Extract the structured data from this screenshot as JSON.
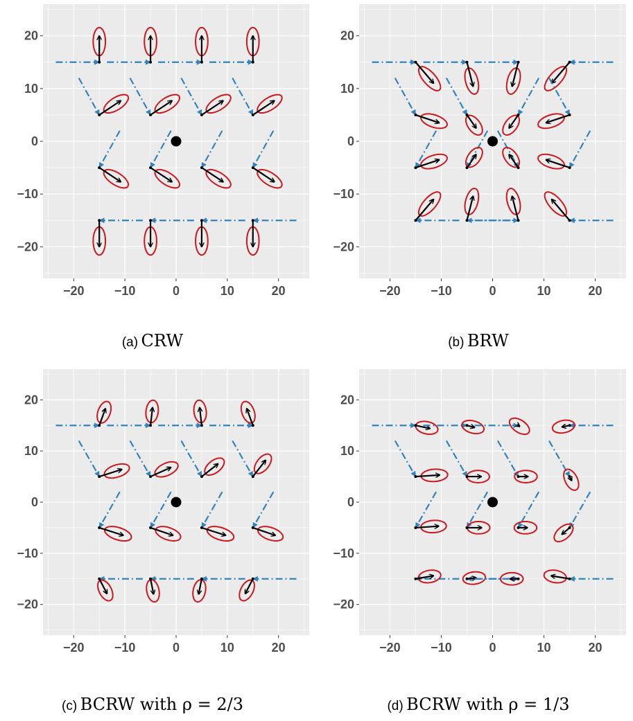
{
  "colors": {
    "panel_bg": "#ebebeb",
    "grid": "#ffffff",
    "move_arrow": "#3182bd",
    "step_arrow": "#000000",
    "ellipse": "#cb181d",
    "target": "#000000",
    "tick_text": "#4d4d4d"
  },
  "chart_data": [
    {
      "type": "scatter",
      "panel": "a",
      "caption_letter": "(a)",
      "caption_text": "CRW",
      "xlim": [
        -26,
        26
      ],
      "ylim": [
        -26,
        26
      ],
      "x_ticks": [
        -20,
        -10,
        0,
        10,
        20
      ],
      "y_ticks": [
        20,
        10,
        0,
        -10,
        -20
      ],
      "target": [
        0,
        0
      ],
      "arrows": [
        {
          "start": [
            -15,
            15
          ],
          "prev": [
            -23.5,
            15
          ],
          "dir": [
            0,
            5
          ]
        },
        {
          "start": [
            -5,
            15
          ],
          "prev": [
            -13.5,
            15
          ],
          "dir": [
            0,
            5
          ]
        },
        {
          "start": [
            5,
            15
          ],
          "prev": [
            -3.5,
            15
          ],
          "dir": [
            0,
            5
          ]
        },
        {
          "start": [
            15,
            15
          ],
          "prev": [
            6.5,
            15
          ],
          "dir": [
            0,
            5
          ]
        },
        {
          "start": [
            -15,
            5
          ],
          "prev": [
            -19,
            12
          ],
          "dir": [
            4.2,
            2.7
          ]
        },
        {
          "start": [
            -5,
            5
          ],
          "prev": [
            -9,
            12
          ],
          "dir": [
            4.2,
            2.7
          ]
        },
        {
          "start": [
            5,
            5
          ],
          "prev": [
            1,
            12
          ],
          "dir": [
            4.2,
            2.7
          ]
        },
        {
          "start": [
            15,
            5
          ],
          "prev": [
            11,
            12
          ],
          "dir": [
            4.2,
            2.7
          ]
        },
        {
          "start": [
            -15,
            -5
          ],
          "prev": [
            -11,
            2
          ],
          "dir": [
            4.2,
            -2.7
          ]
        },
        {
          "start": [
            -5,
            -5
          ],
          "prev": [
            -1,
            2
          ],
          "dir": [
            4.2,
            -2.7
          ]
        },
        {
          "start": [
            5,
            -5
          ],
          "prev": [
            9,
            2
          ],
          "dir": [
            4.2,
            -2.7
          ]
        },
        {
          "start": [
            15,
            -5
          ],
          "prev": [
            19,
            2
          ],
          "dir": [
            4.2,
            -2.7
          ]
        },
        {
          "start": [
            -15,
            -15
          ],
          "prev": [
            -6.5,
            -15
          ],
          "dir": [
            0,
            -5
          ]
        },
        {
          "start": [
            -5,
            -15
          ],
          "prev": [
            3.5,
            -15
          ],
          "dir": [
            0,
            -5
          ]
        },
        {
          "start": [
            5,
            -15
          ],
          "prev": [
            13.5,
            -15
          ],
          "dir": [
            0,
            -5
          ]
        },
        {
          "start": [
            15,
            -15
          ],
          "prev": [
            23.5,
            -15
          ],
          "dir": [
            0,
            -5
          ]
        }
      ]
    },
    {
      "type": "scatter",
      "panel": "b",
      "caption_letter": "(b)",
      "caption_text": "BRW",
      "xlim": [
        -26,
        26
      ],
      "ylim": [
        -26,
        26
      ],
      "x_ticks": [
        -20,
        -10,
        0,
        10,
        20
      ],
      "y_ticks": [
        20,
        10,
        0,
        -10,
        -20
      ],
      "target": [
        0,
        0
      ],
      "arrows": [
        {
          "start": [
            -15,
            15
          ],
          "prev": [
            -23.5,
            15
          ],
          "dir": [
            3.5,
            -4.0
          ]
        },
        {
          "start": [
            -5,
            15
          ],
          "prev": [
            -13.5,
            15
          ],
          "dir": [
            1.2,
            -4.6
          ]
        },
        {
          "start": [
            5,
            15
          ],
          "prev": [
            -3.5,
            15
          ],
          "dir": [
            -1.2,
            -4.6
          ]
        },
        {
          "start": [
            15,
            15
          ],
          "prev": [
            23.5,
            15
          ],
          "dir": [
            -3.5,
            -4.0
          ]
        },
        {
          "start": [
            -15,
            5
          ],
          "prev": [
            -19,
            12
          ],
          "dir": [
            4.6,
            -1.5
          ]
        },
        {
          "start": [
            -5,
            5
          ],
          "prev": [
            -9,
            12
          ],
          "dir": [
            1.8,
            -2.5
          ]
        },
        {
          "start": [
            5,
            5
          ],
          "prev": [
            9,
            12
          ],
          "dir": [
            -1.8,
            -2.5
          ]
        },
        {
          "start": [
            15,
            5
          ],
          "prev": [
            11,
            12
          ],
          "dir": [
            -4.6,
            -1.5
          ]
        },
        {
          "start": [
            -15,
            -5
          ],
          "prev": [
            -11,
            2
          ],
          "dir": [
            4.6,
            1.5
          ]
        },
        {
          "start": [
            -5,
            -5
          ],
          "prev": [
            -1,
            2
          ],
          "dir": [
            1.8,
            2.5
          ]
        },
        {
          "start": [
            5,
            -5
          ],
          "prev": [
            1,
            2
          ],
          "dir": [
            -1.8,
            2.5
          ]
        },
        {
          "start": [
            15,
            -5
          ],
          "prev": [
            19,
            2
          ],
          "dir": [
            -4.6,
            1.5
          ]
        },
        {
          "start": [
            -15,
            -15
          ],
          "prev": [
            -6.5,
            -15
          ],
          "dir": [
            3.5,
            4.0
          ]
        },
        {
          "start": [
            -5,
            -15
          ],
          "prev": [
            3.5,
            -15
          ],
          "dir": [
            1.2,
            4.6
          ]
        },
        {
          "start": [
            5,
            -15
          ],
          "prev": [
            -3.5,
            -15
          ],
          "dir": [
            -1.2,
            4.6
          ]
        },
        {
          "start": [
            15,
            -15
          ],
          "prev": [
            23.5,
            -15
          ],
          "dir": [
            -3.5,
            4.0
          ]
        }
      ]
    },
    {
      "type": "scatter",
      "panel": "c",
      "caption_letter": "(c)",
      "caption_text": "BCRW with ρ = 2/3",
      "xlim": [
        -26,
        26
      ],
      "ylim": [
        -26,
        26
      ],
      "x_ticks": [
        -20,
        -10,
        0,
        10,
        20
      ],
      "y_ticks": [
        20,
        10,
        0,
        -10,
        -20
      ],
      "target": [
        0,
        0
      ],
      "arrows": [
        {
          "start": [
            -15,
            15
          ],
          "prev": [
            -23.5,
            15
          ],
          "dir": [
            1.2,
            3.3
          ]
        },
        {
          "start": [
            -5,
            15
          ],
          "prev": [
            -13.5,
            15
          ],
          "dir": [
            0.4,
            3.5
          ]
        },
        {
          "start": [
            5,
            15
          ],
          "prev": [
            -3.5,
            15
          ],
          "dir": [
            -0.4,
            3.5
          ]
        },
        {
          "start": [
            15,
            15
          ],
          "prev": [
            6.5,
            15
          ],
          "dir": [
            -1.2,
            3.3
          ]
        },
        {
          "start": [
            -15,
            5
          ],
          "prev": [
            -19,
            12
          ],
          "dir": [
            4.4,
            1.4
          ]
        },
        {
          "start": [
            -5,
            5
          ],
          "prev": [
            -9,
            12
          ],
          "dir": [
            4.0,
            1.8
          ]
        },
        {
          "start": [
            5,
            5
          ],
          "prev": [
            1,
            12
          ],
          "dir": [
            3.2,
            2.5
          ]
        },
        {
          "start": [
            15,
            5
          ],
          "prev": [
            11,
            12
          ],
          "dir": [
            2.5,
            3.2
          ]
        },
        {
          "start": [
            -15,
            -5
          ],
          "prev": [
            -11,
            2
          ],
          "dir": [
            4.7,
            -1.5
          ]
        },
        {
          "start": [
            -5,
            -5
          ],
          "prev": [
            -1,
            2
          ],
          "dir": [
            4.4,
            -1.5
          ]
        },
        {
          "start": [
            5,
            -5
          ],
          "prev": [
            9,
            2
          ],
          "dir": [
            4.7,
            -1.5
          ]
        },
        {
          "start": [
            15,
            -5
          ],
          "prev": [
            19,
            2
          ],
          "dir": [
            4.4,
            -1.5
          ]
        },
        {
          "start": [
            -15,
            -15
          ],
          "prev": [
            -6.5,
            -15
          ],
          "dir": [
            1.5,
            -2.9
          ]
        },
        {
          "start": [
            -5,
            -15
          ],
          "prev": [
            3.5,
            -15
          ],
          "dir": [
            0.6,
            -3.0
          ]
        },
        {
          "start": [
            5,
            -15
          ],
          "prev": [
            13.5,
            -15
          ],
          "dir": [
            -0.6,
            -3.0
          ]
        },
        {
          "start": [
            15,
            -15
          ],
          "prev": [
            23.5,
            -15
          ],
          "dir": [
            -1.5,
            -2.9
          ]
        }
      ]
    },
    {
      "type": "scatter",
      "panel": "d",
      "caption_letter": "(d)",
      "caption_text": "BCRW with ρ = 1/3",
      "xlim": [
        -26,
        26
      ],
      "ylim": [
        -26,
        26
      ],
      "x_ticks": [
        -20,
        -10,
        0,
        10,
        20
      ],
      "y_ticks": [
        20,
        10,
        0,
        -10,
        -20
      ],
      "target": [
        0,
        0
      ],
      "arrows": [
        {
          "start": [
            -15,
            15
          ],
          "prev": [
            -23.5,
            15
          ],
          "dir": [
            2.8,
            -0.6
          ]
        },
        {
          "start": [
            -5,
            15
          ],
          "prev": [
            -13.5,
            15
          ],
          "dir": [
            1.5,
            -0.4
          ]
        },
        {
          "start": [
            5,
            15
          ],
          "prev": [
            -3.5,
            15
          ],
          "dir": [
            0.3,
            -0.2
          ]
        },
        {
          "start": [
            15,
            15
          ],
          "prev": [
            23.5,
            15
          ],
          "dir": [
            -1.5,
            -0.3
          ]
        },
        {
          "start": [
            -15,
            5
          ],
          "prev": [
            -19,
            12
          ],
          "dir": [
            4.7,
            0.3
          ]
        },
        {
          "start": [
            -5,
            5
          ],
          "prev": [
            -9,
            12
          ],
          "dir": [
            2.8,
            0.0
          ]
        },
        {
          "start": [
            5,
            5
          ],
          "prev": [
            1,
            12
          ],
          "dir": [
            1.9,
            0.0
          ]
        },
        {
          "start": [
            15,
            5
          ],
          "prev": [
            11,
            12
          ],
          "dir": [
            0.4,
            -0.8
          ]
        },
        {
          "start": [
            -15,
            -5
          ],
          "prev": [
            -11,
            2
          ],
          "dir": [
            4.5,
            0.3
          ]
        },
        {
          "start": [
            -5,
            -5
          ],
          "prev": [
            -1,
            2
          ],
          "dir": [
            2.9,
            0.0
          ]
        },
        {
          "start": [
            5,
            -5
          ],
          "prev": [
            9,
            2
          ],
          "dir": [
            1.8,
            0.0
          ]
        },
        {
          "start": [
            15,
            -5
          ],
          "prev": [
            19,
            2
          ],
          "dir": [
            -1.5,
            -1.3
          ]
        },
        {
          "start": [
            -15,
            -15
          ],
          "prev": [
            -6.5,
            -15
          ],
          "dir": [
            3.5,
            0.6
          ]
        },
        {
          "start": [
            -5,
            -15
          ],
          "prev": [
            3.5,
            -15
          ],
          "dir": [
            1.8,
            0.2
          ]
        },
        {
          "start": [
            5,
            -15
          ],
          "prev": [
            -3.5,
            -15
          ],
          "dir": [
            -1.6,
            0.0
          ]
        },
        {
          "start": [
            15,
            -15
          ],
          "prev": [
            23.5,
            -15
          ],
          "dir": [
            -3.6,
            0.6
          ]
        }
      ]
    }
  ]
}
